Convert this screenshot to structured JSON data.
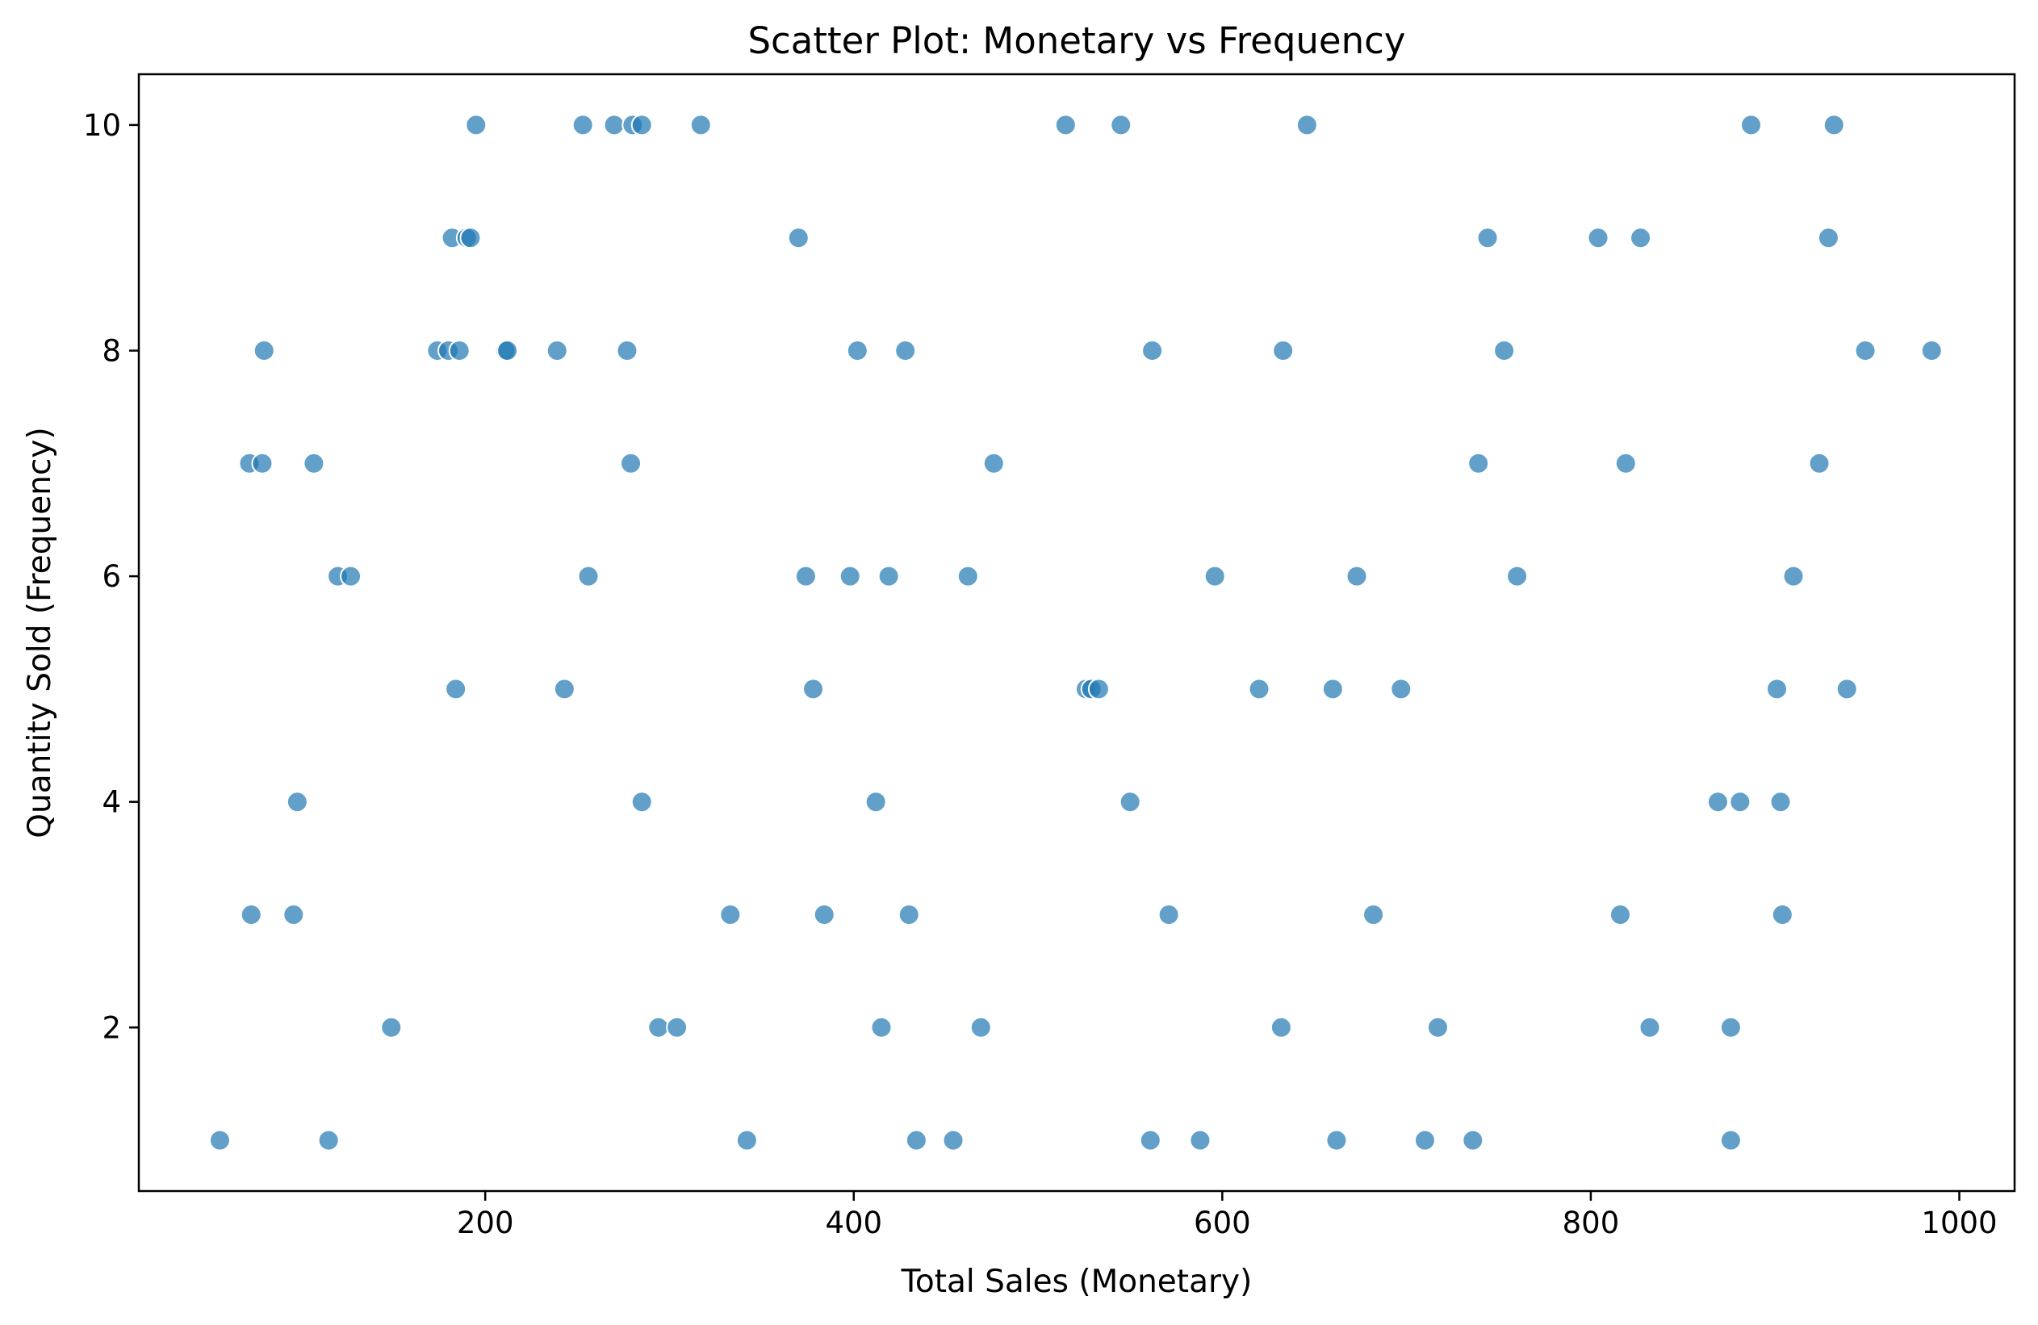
{
  "chart_data": {
    "type": "scatter",
    "title": "Scatter Plot: Monetary vs Frequency",
    "xlabel": "Total Sales (Monetary)",
    "ylabel": "Quantity Sold (Frequency)",
    "xlim": [
      12,
      1030
    ],
    "ylim": [
      0.55,
      10.45
    ],
    "xticks": [
      200,
      400,
      600,
      800,
      1000
    ],
    "yticks": [
      2,
      4,
      6,
      8,
      10
    ],
    "grid": false,
    "point_color": "#1f77b4",
    "point_opacity": 0.7,
    "points": [
      {
        "x": 195,
        "y": 10
      },
      {
        "x": 253,
        "y": 10
      },
      {
        "x": 270,
        "y": 10
      },
      {
        "x": 280,
        "y": 10
      },
      {
        "x": 285,
        "y": 10
      },
      {
        "x": 317,
        "y": 10
      },
      {
        "x": 515,
        "y": 10
      },
      {
        "x": 545,
        "y": 10
      },
      {
        "x": 646,
        "y": 10
      },
      {
        "x": 887,
        "y": 10
      },
      {
        "x": 932,
        "y": 10
      },
      {
        "x": 182,
        "y": 9
      },
      {
        "x": 190,
        "y": 9
      },
      {
        "x": 192,
        "y": 9
      },
      {
        "x": 370,
        "y": 9
      },
      {
        "x": 744,
        "y": 9
      },
      {
        "x": 804,
        "y": 9
      },
      {
        "x": 827,
        "y": 9
      },
      {
        "x": 929,
        "y": 9
      },
      {
        "x": 80,
        "y": 8
      },
      {
        "x": 174,
        "y": 8
      },
      {
        "x": 180,
        "y": 8
      },
      {
        "x": 186,
        "y": 8
      },
      {
        "x": 211,
        "y": 8
      },
      {
        "x": 212,
        "y": 8
      },
      {
        "x": 239,
        "y": 8
      },
      {
        "x": 277,
        "y": 8
      },
      {
        "x": 402,
        "y": 8
      },
      {
        "x": 428,
        "y": 8
      },
      {
        "x": 562,
        "y": 8
      },
      {
        "x": 633,
        "y": 8
      },
      {
        "x": 753,
        "y": 8
      },
      {
        "x": 949,
        "y": 8
      },
      {
        "x": 985,
        "y": 8
      },
      {
        "x": 72,
        "y": 7
      },
      {
        "x": 79,
        "y": 7
      },
      {
        "x": 107,
        "y": 7
      },
      {
        "x": 279,
        "y": 7
      },
      {
        "x": 476,
        "y": 7
      },
      {
        "x": 739,
        "y": 7
      },
      {
        "x": 819,
        "y": 7
      },
      {
        "x": 924,
        "y": 7
      },
      {
        "x": 120,
        "y": 6
      },
      {
        "x": 127,
        "y": 6
      },
      {
        "x": 256,
        "y": 6
      },
      {
        "x": 374,
        "y": 6
      },
      {
        "x": 398,
        "y": 6
      },
      {
        "x": 419,
        "y": 6
      },
      {
        "x": 462,
        "y": 6
      },
      {
        "x": 596,
        "y": 6
      },
      {
        "x": 673,
        "y": 6
      },
      {
        "x": 760,
        "y": 6
      },
      {
        "x": 910,
        "y": 6
      },
      {
        "x": 184,
        "y": 5
      },
      {
        "x": 243,
        "y": 5
      },
      {
        "x": 378,
        "y": 5
      },
      {
        "x": 526,
        "y": 5
      },
      {
        "x": 529,
        "y": 5
      },
      {
        "x": 533,
        "y": 5
      },
      {
        "x": 620,
        "y": 5
      },
      {
        "x": 660,
        "y": 5
      },
      {
        "x": 697,
        "y": 5
      },
      {
        "x": 901,
        "y": 5
      },
      {
        "x": 939,
        "y": 5
      },
      {
        "x": 98,
        "y": 4
      },
      {
        "x": 285,
        "y": 4
      },
      {
        "x": 412,
        "y": 4
      },
      {
        "x": 550,
        "y": 4
      },
      {
        "x": 869,
        "y": 4
      },
      {
        "x": 881,
        "y": 4
      },
      {
        "x": 903,
        "y": 4
      },
      {
        "x": 73,
        "y": 3
      },
      {
        "x": 96,
        "y": 3
      },
      {
        "x": 333,
        "y": 3
      },
      {
        "x": 384,
        "y": 3
      },
      {
        "x": 430,
        "y": 3
      },
      {
        "x": 571,
        "y": 3
      },
      {
        "x": 682,
        "y": 3
      },
      {
        "x": 816,
        "y": 3
      },
      {
        "x": 904,
        "y": 3
      },
      {
        "x": 149,
        "y": 2
      },
      {
        "x": 294,
        "y": 2
      },
      {
        "x": 304,
        "y": 2
      },
      {
        "x": 415,
        "y": 2
      },
      {
        "x": 469,
        "y": 2
      },
      {
        "x": 632,
        "y": 2
      },
      {
        "x": 717,
        "y": 2
      },
      {
        "x": 832,
        "y": 2
      },
      {
        "x": 876,
        "y": 2
      },
      {
        "x": 56,
        "y": 1
      },
      {
        "x": 115,
        "y": 1
      },
      {
        "x": 342,
        "y": 1
      },
      {
        "x": 434,
        "y": 1
      },
      {
        "x": 454,
        "y": 1
      },
      {
        "x": 561,
        "y": 1
      },
      {
        "x": 588,
        "y": 1
      },
      {
        "x": 662,
        "y": 1
      },
      {
        "x": 710,
        "y": 1
      },
      {
        "x": 736,
        "y": 1
      },
      {
        "x": 876,
        "y": 1
      }
    ]
  }
}
